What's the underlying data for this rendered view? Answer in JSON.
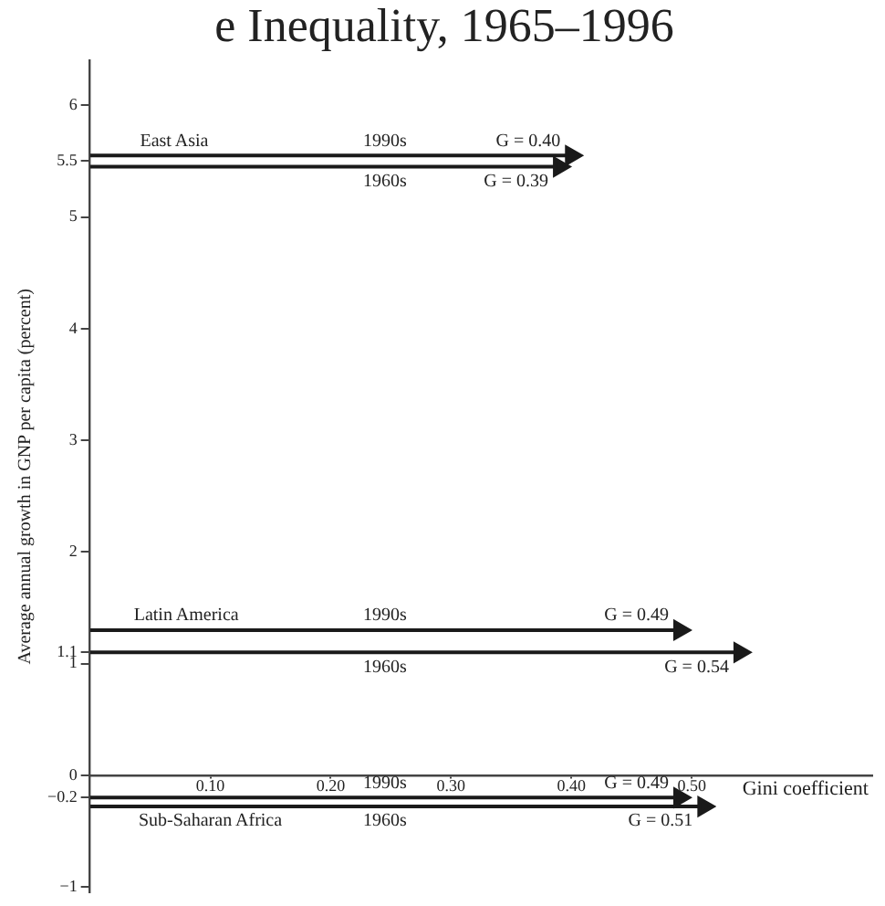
{
  "chart_data": {
    "type": "line",
    "title": "e Inequality, 1965–1996",
    "xlabel": "Gini coefficient",
    "ylabel": "Average annual growth in GNP per capita (percent)",
    "xlim": [
      0,
      0.65
    ],
    "ylim": [
      -1.05,
      6.4
    ],
    "xticks": [
      {
        "value": 0.1,
        "label": "0.10"
      },
      {
        "value": 0.2,
        "label": "0.20"
      },
      {
        "value": 0.3,
        "label": "0.30"
      },
      {
        "value": 0.4,
        "label": "0.40"
      },
      {
        "value": 0.5,
        "label": "0.50"
      }
    ],
    "yticks": [
      -1,
      -0.2,
      0,
      1,
      1.1,
      2,
      3,
      4,
      5,
      5.5,
      6
    ],
    "grid": false,
    "legend": false,
    "marker": "triangle",
    "line_style": "solid",
    "series": [
      {
        "name": "1990s",
        "color": "#1a1a1a",
        "x": [
          0,
          0.4
        ],
        "values": [
          5.55,
          5.55
        ]
      },
      {
        "name": "1960s",
        "color": "#1a1a1a",
        "x": [
          0,
          0.39
        ],
        "values": [
          5.45,
          5.45
        ]
      },
      {
        "name": "1990s",
        "color": "#1a1a1a",
        "x": [
          0,
          0.49
        ],
        "values": [
          1.3,
          1.3
        ]
      },
      {
        "name": "1960s",
        "color": "#1a1a1a",
        "x": [
          0,
          0.54
        ],
        "values": [
          1.1,
          1.1
        ]
      },
      {
        "name": "1990s",
        "color": "#1a1a1a",
        "x": [
          0,
          0.49
        ],
        "values": [
          -0.2,
          -0.2
        ]
      },
      {
        "name": "1960s",
        "color": "#1a1a1a",
        "x": [
          0,
          0.51
        ],
        "values": [
          -0.28,
          -0.28
        ]
      }
    ],
    "annotations": [
      {
        "text": "G = 0.40",
        "x": 0.4,
        "y": 5.55
      },
      {
        "text": "G = 0.39",
        "x": 0.39,
        "y": 5.45
      },
      {
        "text": "G = 0.49",
        "x": 0.49,
        "y": 1.3
      },
      {
        "text": "G = 0.54",
        "x": 0.54,
        "y": 1.1
      },
      {
        "text": "G = 0.49",
        "x": 0.49,
        "y": -0.2
      },
      {
        "text": "G = 0.51",
        "x": 0.51,
        "y": -0.28
      },
      {
        "text": "East Asia",
        "x": 0.07,
        "y": 5.55
      },
      {
        "text": "Latin America",
        "x": 0.08,
        "y": 1.3
      },
      {
        "text": "Sub-Saharan Africa",
        "x": 0.1,
        "y": -0.28
      }
    ]
  }
}
